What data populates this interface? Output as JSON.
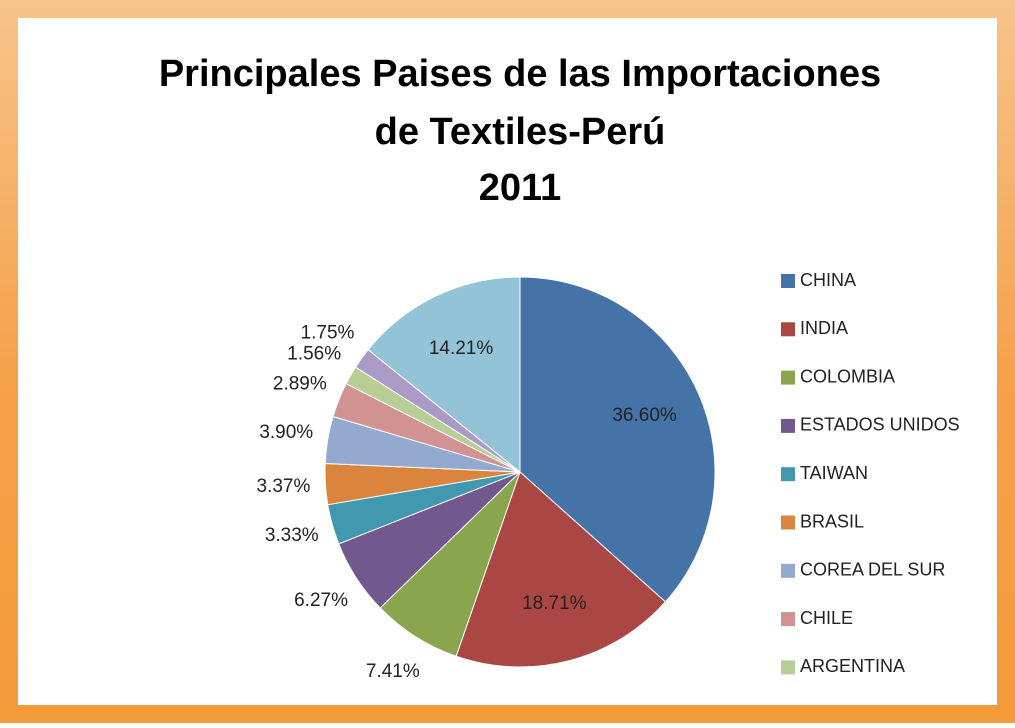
{
  "chart_data": {
    "type": "pie",
    "title": [
      "Principales Paises de las Importaciones",
      "de Textiles-Perú",
      "2011"
    ],
    "categories": [
      "CHINA",
      "INDIA",
      "COLOMBIA",
      "ESTADOS UNIDOS",
      "TAIWAN",
      "BRASIL",
      "COREA DEL SUR",
      "CHILE",
      "ARGENTINA",
      null,
      null
    ],
    "values": [
      36.6,
      18.71,
      7.41,
      6.27,
      3.33,
      3.37,
      3.9,
      2.89,
      1.56,
      1.75,
      14.21
    ],
    "value_labels": [
      "36.60%",
      "18.71%",
      "7.41%",
      "6.27%",
      "3.33%",
      "3.37%",
      "3.90%",
      "2.89%",
      "1.56%",
      "1.75%",
      "14.21%"
    ],
    "colors": [
      "#4572a7",
      "#aa4643",
      "#89a54e",
      "#71588f",
      "#4198af",
      "#db843d",
      "#93a9cf",
      "#d19392",
      "#b9cd96",
      "#a99bc6",
      "#93c3d6"
    ],
    "legend": "right"
  }
}
